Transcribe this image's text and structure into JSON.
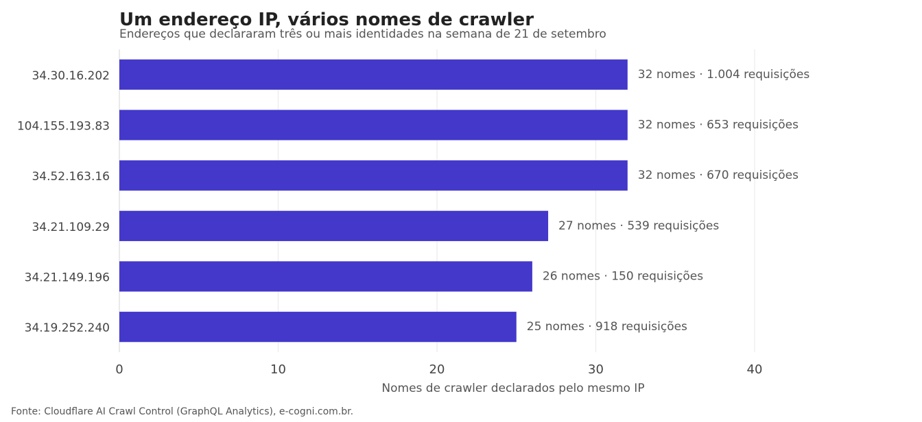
{
  "chart_data": {
    "type": "bar",
    "orientation": "horizontal",
    "title": "Um endereço IP, vários nomes de crawler",
    "subtitle": "Endereços que declararam três ou mais identidades na semana de 21 de setembro",
    "xlabel": "Nomes de crawler declarados pelo mesmo IP",
    "ylabel": "",
    "xlim": [
      0,
      40
    ],
    "xticks": [
      "0",
      "10",
      "20",
      "30",
      "40"
    ],
    "grid": "vertical",
    "bar_color": "#4338ca",
    "categories": [
      "34.30.16.202",
      "104.155.193.83",
      "34.52.163.16",
      "34.21.109.29",
      "34.21.149.196",
      "34.19.252.240"
    ],
    "values": [
      32,
      32,
      32,
      27,
      26,
      25
    ],
    "data_labels": [
      "32 nomes · 1.004 requisições",
      "32 nomes · 653 requisições",
      "32 nomes · 670 requisições",
      "27 nomes · 539 requisições",
      "26 nomes · 150 requisições",
      "25 nomes · 918 requisições"
    ]
  },
  "source": "Fonte: Cloudflare AI Crawl Control (GraphQL Analytics), e-cogni.com.br."
}
